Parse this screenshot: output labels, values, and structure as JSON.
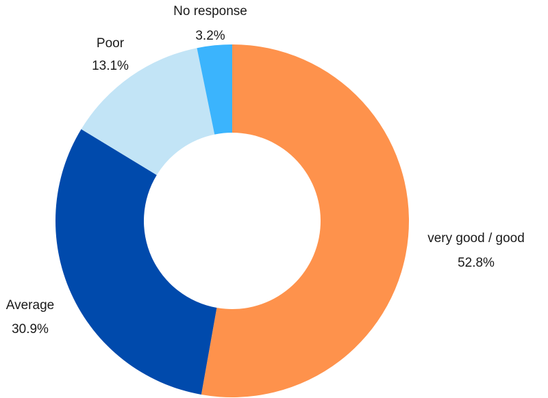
{
  "chart_data": {
    "type": "pie",
    "variant": "donut",
    "start_angle_deg": 0,
    "direction": "clockwise",
    "slices": [
      {
        "label": "very good / good",
        "value": 52.8,
        "value_label": "52.8%",
        "color": "#fe924c"
      },
      {
        "label": "Average",
        "value": 30.9,
        "value_label": "30.9%",
        "color": "#004aac"
      },
      {
        "label": "Poor",
        "value": 13.1,
        "value_label": "13.1%",
        "color": "#c2e4f6"
      },
      {
        "label": "No response",
        "value": 3.2,
        "value_label": "3.2%",
        "color": "#3bb4fd"
      }
    ]
  }
}
